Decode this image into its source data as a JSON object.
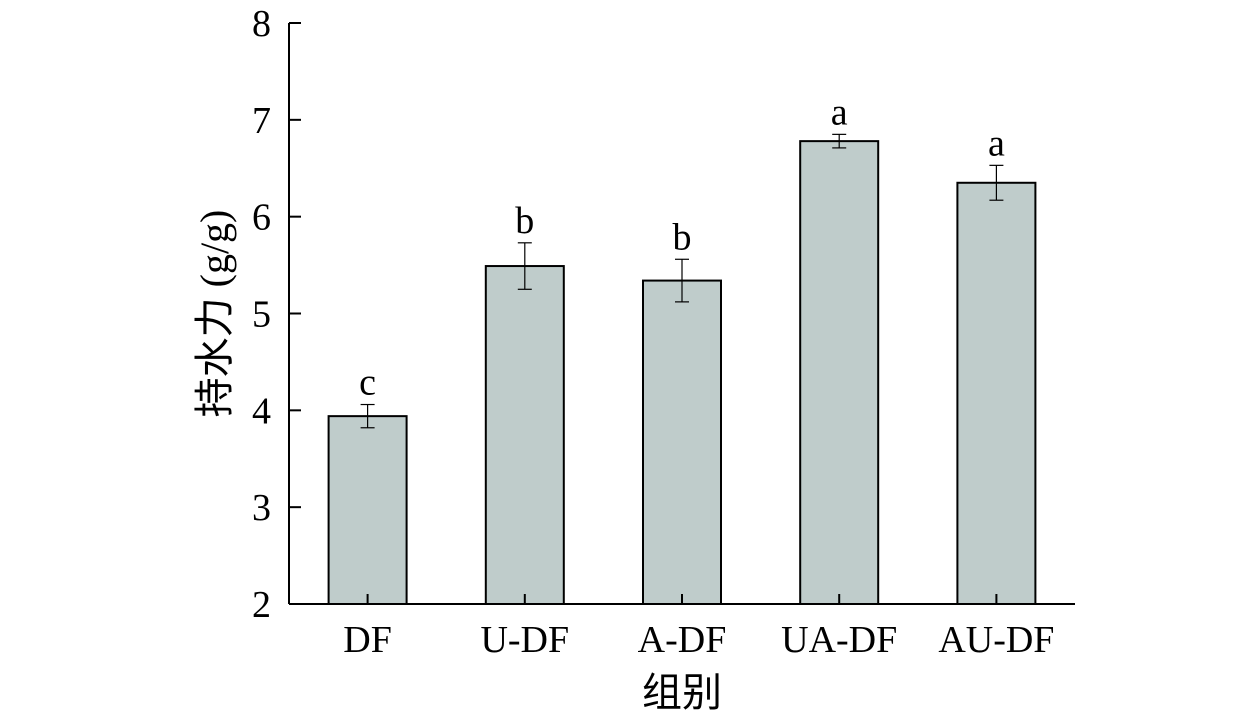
{
  "chart_data": {
    "type": "bar",
    "categories": [
      "DF",
      "U-DF",
      "A-DF",
      "UA-DF",
      "AU-DF"
    ],
    "values": [
      3.94,
      5.49,
      5.34,
      6.78,
      6.35
    ],
    "errors": [
      0.12,
      0.24,
      0.22,
      0.07,
      0.18
    ],
    "significance": [
      "c",
      "b",
      "b",
      "a",
      "a"
    ],
    "xlabel": "组别",
    "ylabel": "持水力 (g/g)",
    "ylim": [
      2,
      8
    ],
    "yticks": [
      2,
      3,
      4,
      5,
      6,
      7,
      8
    ],
    "grid": false,
    "legend": "none",
    "colors": {
      "bar_fill": "#bfcccb",
      "bar_stroke": "#000000",
      "axis": "#000000"
    }
  }
}
